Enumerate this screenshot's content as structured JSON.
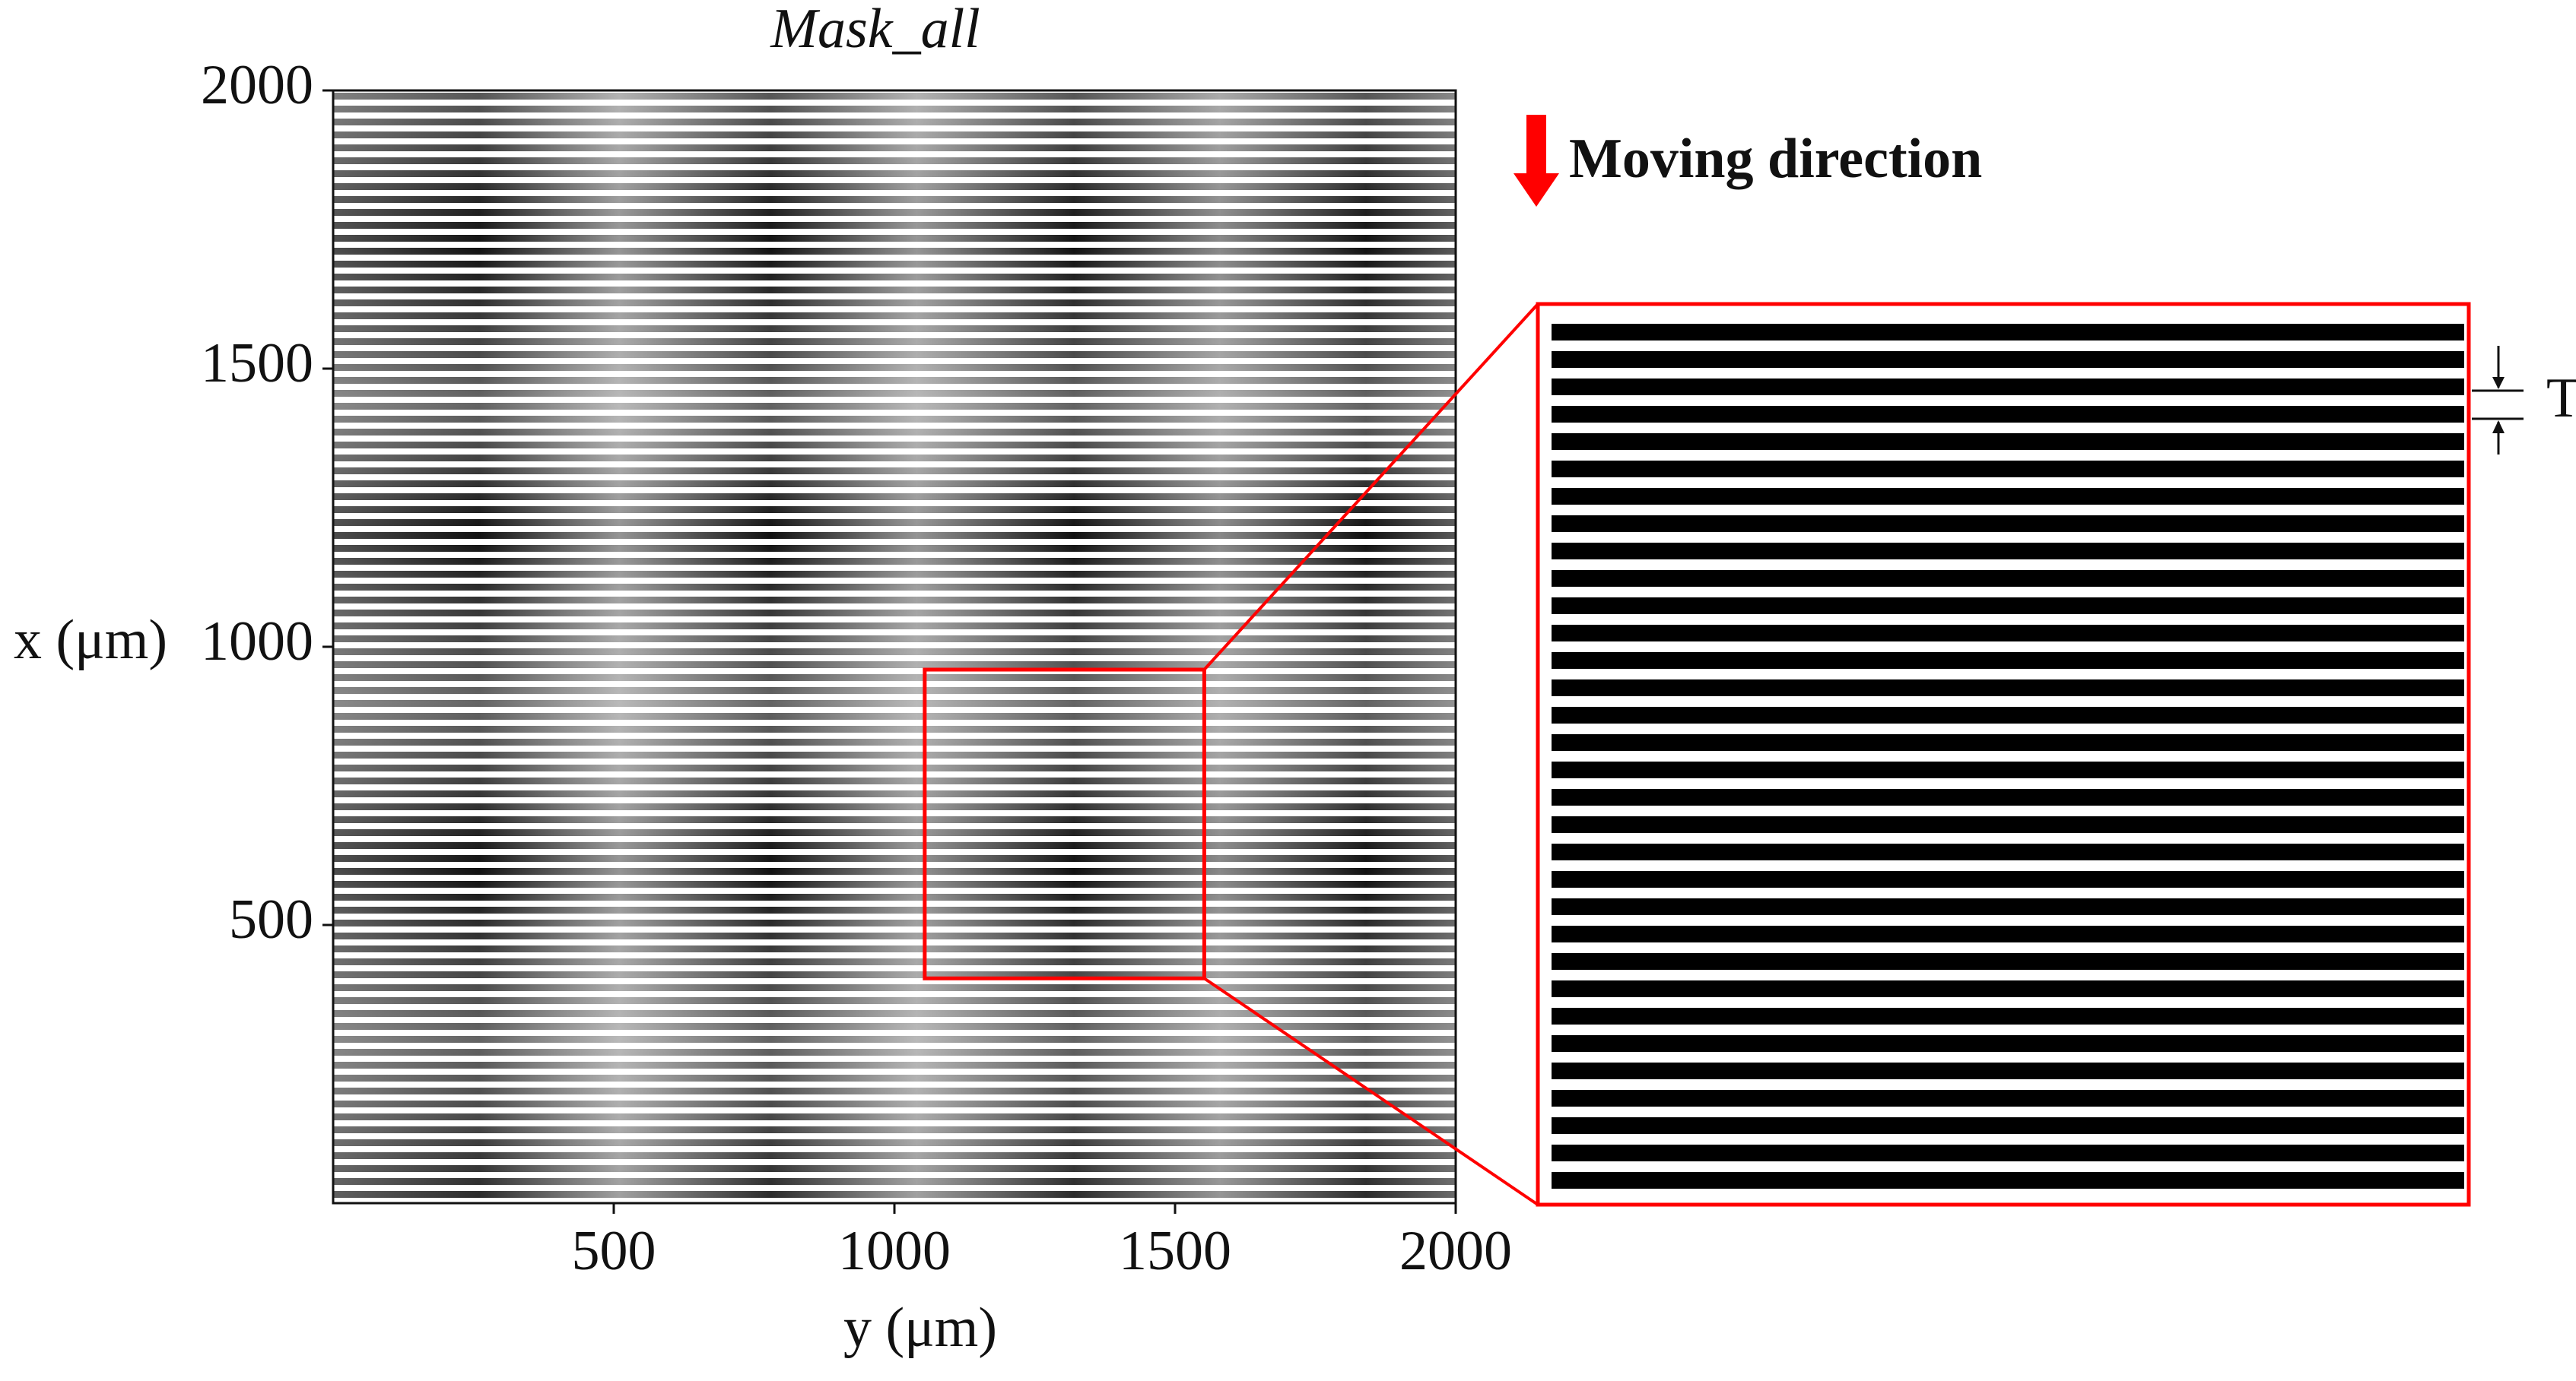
{
  "chart_data": {
    "type": "image",
    "title": "Mask_all",
    "x_label": "y (μm)",
    "y_label": "x (μm)",
    "xlim": [
      0,
      2000
    ],
    "ylim": [
      0,
      2000
    ],
    "xticks": [
      500,
      1000,
      1500,
      2000
    ],
    "yticks": [
      500,
      1000,
      1500,
      2000
    ],
    "zoom_region": {
      "xlim": [
        1054,
        1552
      ],
      "ylim": [
        404,
        959
      ]
    },
    "color": "#ff0000",
    "annotations": {
      "direction": "Moving direction",
      "period": "T"
    }
  }
}
